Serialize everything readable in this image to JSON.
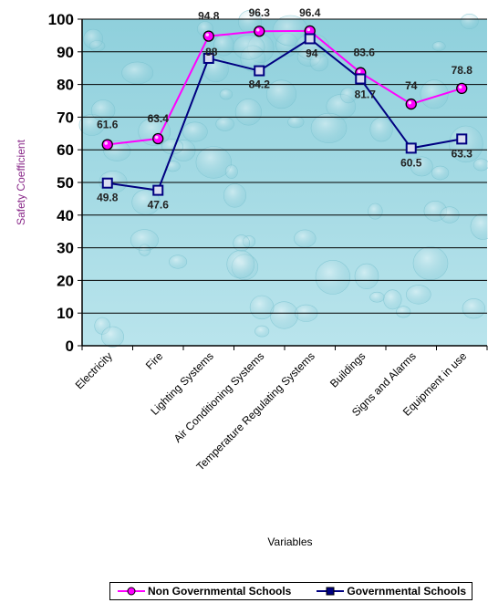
{
  "chart_data": {
    "type": "line",
    "title": "",
    "xlabel": "Variables",
    "ylabel": "Safety Coefficient",
    "ylim": [
      0,
      100
    ],
    "yticks": [
      "0",
      "10",
      "20",
      "30",
      "40",
      "50",
      "60",
      "70",
      "80",
      "90",
      "100"
    ],
    "grid": true,
    "legend_position": "bottom",
    "categories": [
      "Electricity",
      "Fire",
      "Lighting Systems",
      "Air Conditioning Systems",
      "Temperature Regulating Systems",
      "Buildings",
      "Signs and Alarms",
      "Equipment in use"
    ],
    "series": [
      {
        "name": "Non Governmental Schools",
        "color": "#ff00ff",
        "marker": "circle",
        "values": [
          61.6,
          63.4,
          94.8,
          96.3,
          96.4,
          83.6,
          74,
          78.8
        ],
        "labels": [
          "61.6",
          "63.4",
          "94.8",
          "96.3",
          "96.4",
          "83.6",
          "74",
          "78.8"
        ]
      },
      {
        "name": "Governmental Schools",
        "color": "#000080",
        "marker": "square",
        "values": [
          49.8,
          47.6,
          88,
          84.2,
          94,
          81.7,
          60.5,
          63.3
        ],
        "labels": [
          "49.8",
          "47.6",
          "88",
          "84.2",
          "94",
          "81.7",
          "60.5",
          "63.3"
        ]
      }
    ],
    "colors": {
      "plot_bg": "#a6d9e3",
      "ylabel": "#8a2a8a"
    }
  }
}
